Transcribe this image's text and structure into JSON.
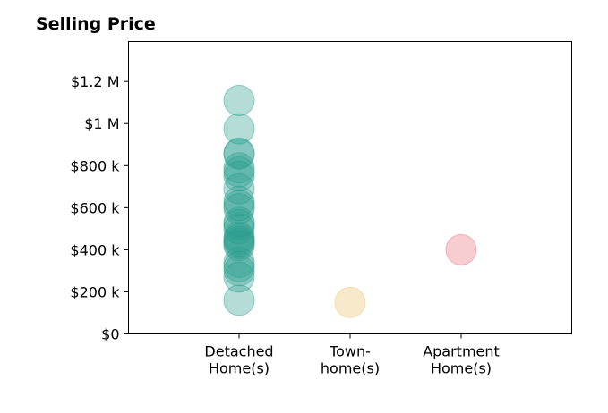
{
  "chart_data": {
    "type": "scatter",
    "title": "Selling Price",
    "xlabel": "",
    "ylabel": "",
    "categories": [
      [
        "Detached",
        "Home(s)"
      ],
      [
        "Town-",
        "home(s)"
      ],
      [
        "Apartment",
        "Home(s)"
      ]
    ],
    "y_ticks": [
      {
        "value": 0,
        "label": "$0"
      },
      {
        "value": 200000,
        "label": "$200 k"
      },
      {
        "value": 400000,
        "label": "$400 k"
      },
      {
        "value": 600000,
        "label": "$600 k"
      },
      {
        "value": 800000,
        "label": "$800 k"
      },
      {
        "value": 1000000,
        "label": "$1 M"
      },
      {
        "value": 1200000,
        "label": "$1.2 M"
      }
    ],
    "ylim": [
      0,
      1390000
    ],
    "grid": false,
    "colors": [
      "#2a9d8f",
      "#e9c46a",
      "#e76f7a"
    ],
    "point_opacity": 0.35,
    "series": [
      {
        "category_index": 0,
        "values": [
          1110000,
          975000,
          860000,
          855000,
          790000,
          770000,
          750000,
          690000,
          630000,
          610000,
          595000,
          530000,
          520000,
          500000,
          460000,
          450000,
          440000,
          430000,
          420000,
          340000,
          320000,
          300000,
          270000,
          160000
        ]
      },
      {
        "category_index": 1,
        "values": [
          150000
        ]
      },
      {
        "category_index": 2,
        "values": [
          400000
        ]
      }
    ]
  }
}
